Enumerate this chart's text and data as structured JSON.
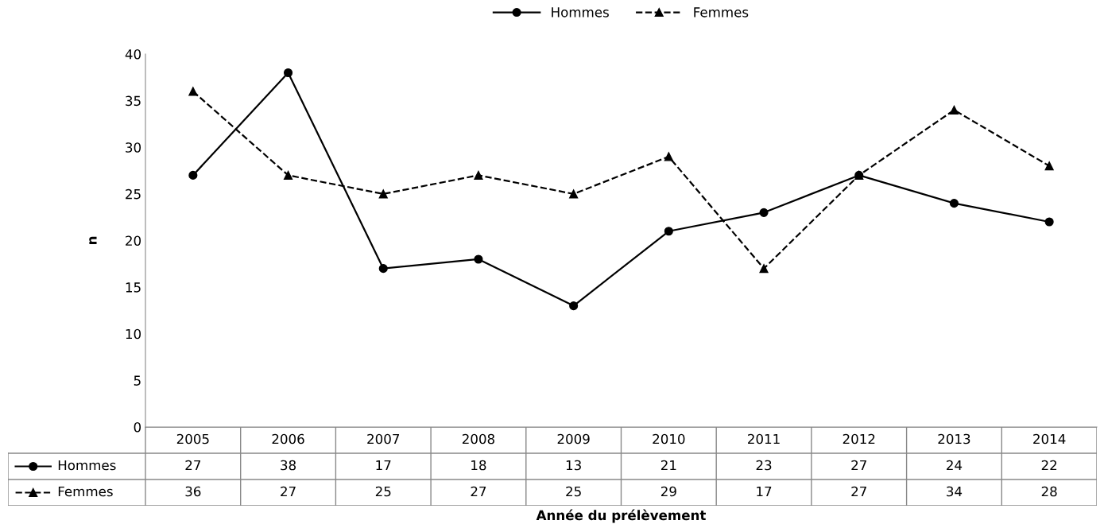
{
  "chart_data": {
    "type": "line",
    "xlabel": "Année du prélèvement",
    "ylabel": "n",
    "categories": [
      "2005",
      "2006",
      "2007",
      "2008",
      "2009",
      "2010",
      "2011",
      "2012",
      "2013",
      "2014"
    ],
    "series": [
      {
        "name": "Hommes",
        "color": "#000000",
        "marker": "circle",
        "line_style": "solid",
        "values": [
          27,
          38,
          17,
          18,
          13,
          21,
          23,
          27,
          24,
          22
        ]
      },
      {
        "name": "Femmes",
        "color": "#000000",
        "marker": "triangle",
        "line_style": "dashed",
        "values": [
          36,
          27,
          25,
          27,
          25,
          29,
          17,
          27,
          34,
          28
        ]
      }
    ],
    "ylim": [
      0,
      40
    ],
    "yticks": [
      0,
      5,
      10,
      15,
      20,
      25,
      30,
      35,
      40
    ],
    "grid": false,
    "legend": "top",
    "data_labels": true
  }
}
